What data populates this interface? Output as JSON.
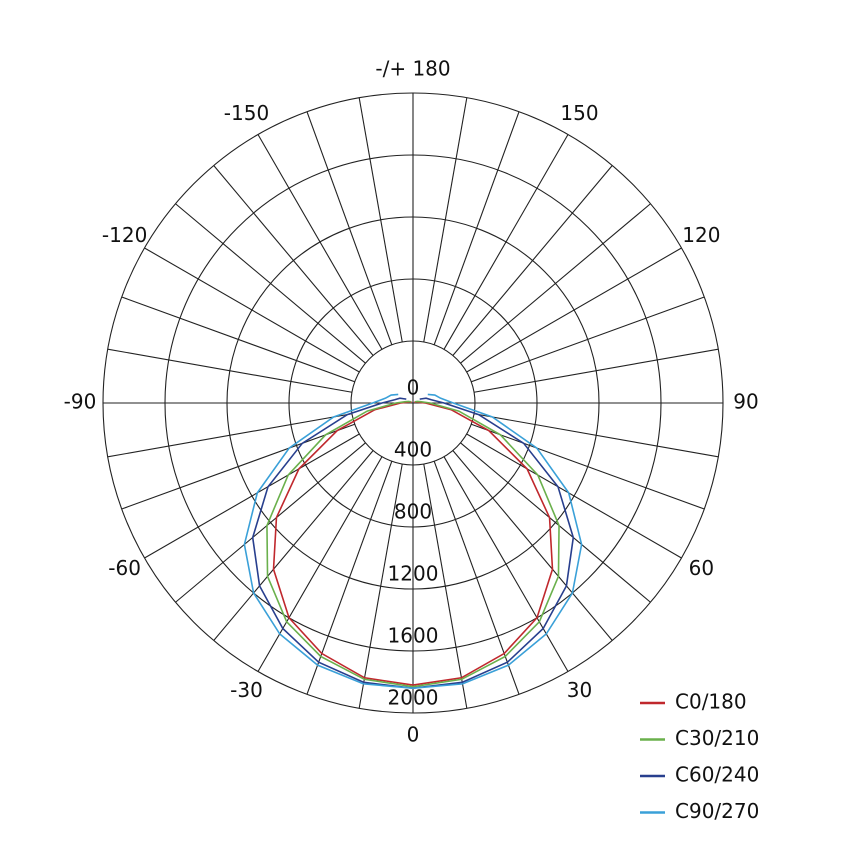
{
  "chart_data": {
    "type": "polar",
    "x": [
      -120,
      -110,
      -100,
      -90,
      -80,
      -70,
      -60,
      -50,
      -40,
      -30,
      -20,
      -10,
      0,
      10,
      20,
      30,
      40,
      50,
      60,
      70,
      80,
      90,
      100,
      110,
      120
    ],
    "series": [
      {
        "name": "C0/180",
        "color": "#c0282d",
        "values": [
          10,
          20,
          30,
          80,
          250,
          520,
          850,
          1150,
          1400,
          1600,
          1720,
          1800,
          1820,
          1800,
          1720,
          1600,
          1400,
          1150,
          850,
          520,
          250,
          80,
          30,
          20,
          10
        ]
      },
      {
        "name": "C30/210",
        "color": "#6ab04c",
        "values": [
          15,
          30,
          50,
          110,
          300,
          600,
          930,
          1230,
          1460,
          1630,
          1740,
          1810,
          1830,
          1810,
          1740,
          1630,
          1460,
          1230,
          930,
          600,
          300,
          110,
          50,
          30,
          15
        ]
      },
      {
        "name": "C60/240",
        "color": "#283f8e",
        "values": [
          50,
          90,
          120,
          200,
          430,
          760,
          1080,
          1350,
          1540,
          1680,
          1780,
          1830,
          1840,
          1830,
          1780,
          1680,
          1540,
          1350,
          1080,
          760,
          430,
          200,
          120,
          90,
          50
        ]
      },
      {
        "name": "C90/270",
        "color": "#3aa0d8",
        "values": [
          110,
          150,
          180,
          260,
          520,
          850,
          1160,
          1420,
          1600,
          1720,
          1800,
          1840,
          1840,
          1840,
          1800,
          1720,
          1600,
          1420,
          1160,
          850,
          520,
          260,
          180,
          150,
          110
        ]
      }
    ],
    "rlim": [
      0,
      2000
    ],
    "rticks": [
      0,
      400,
      800,
      1200,
      1600,
      2000
    ],
    "thetaticks": [
      -150,
      -120,
      -90,
      -60,
      -30,
      0,
      30,
      60,
      90,
      120,
      150,
      {
        "value": 180,
        "label": "-/+ 180"
      }
    ],
    "grid": true,
    "legend": "lower right"
  }
}
